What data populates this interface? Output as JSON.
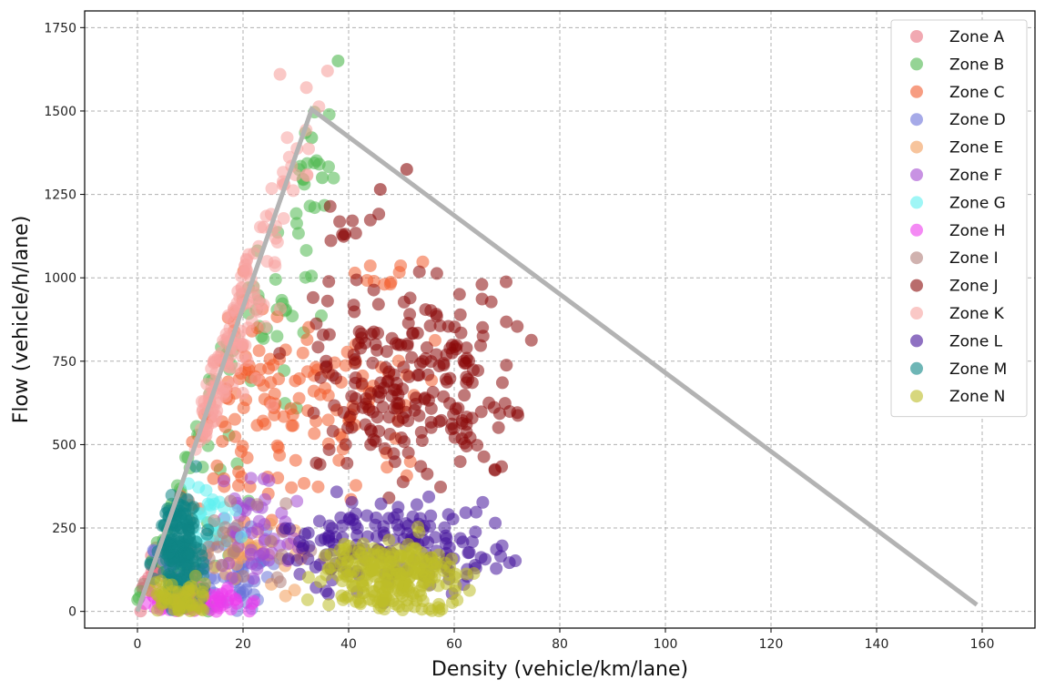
{
  "chart_data": {
    "type": "scatter",
    "title": "",
    "xlabel": "Density (vehicle/km/lane)",
    "ylabel": "Flow (vehicle/h/lane)",
    "xlim": [
      -10,
      170
    ],
    "ylim": [
      -50,
      1800
    ],
    "xticks": [
      0,
      20,
      40,
      60,
      80,
      100,
      120,
      140,
      160
    ],
    "yticks": [
      0,
      250,
      500,
      750,
      1000,
      1250,
      1500,
      1750
    ],
    "grid": true,
    "legend_position": "top-right",
    "point_count_note": "representative sample of each zone's cloud",
    "series": [
      {
        "name": "Zone A",
        "color": "#e8707f",
        "clusters": [
          [
            3,
            100,
            4,
            80,
            20
          ]
        ]
      },
      {
        "name": "Zone B",
        "color": "#4fb84f",
        "clusters": [
          [
            10,
            350,
            8,
            300,
            40
          ],
          [
            22,
            950,
            8,
            250,
            40
          ],
          [
            33,
            1300,
            4,
            150,
            20
          ]
        ],
        "points": [
          [
            38,
            1650
          ],
          [
            33,
            1420
          ],
          [
            35,
            1300
          ]
        ]
      },
      {
        "name": "Zone C",
        "color": "#f25c2e",
        "clusters": [
          [
            22,
            650,
            8,
            250,
            90
          ],
          [
            40,
            620,
            10,
            200,
            60
          ],
          [
            48,
            1000,
            5,
            60,
            10
          ]
        ]
      },
      {
        "name": "Zone D",
        "color": "#6a72d8",
        "clusters": [
          [
            16,
            120,
            8,
            90,
            70
          ]
        ]
      },
      {
        "name": "Zone E",
        "color": "#f29c5a",
        "clusters": [
          [
            20,
            180,
            10,
            80,
            40
          ]
        ]
      },
      {
        "name": "Zone F",
        "color": "#a34ad1",
        "clusters": [
          [
            22,
            220,
            6,
            120,
            50
          ]
        ]
      },
      {
        "name": "Zone G",
        "color": "#5ff0f0",
        "clusters": [
          [
            13,
            280,
            4,
            70,
            30
          ]
        ]
      },
      {
        "name": "Zone H",
        "color": "#ec3cec",
        "clusters": [
          [
            12,
            30,
            8,
            30,
            80
          ]
        ]
      },
      {
        "name": "Zone I",
        "color": "#b07f7a",
        "clusters": [
          [
            18,
            200,
            10,
            100,
            30
          ]
        ]
      },
      {
        "name": "Zone J",
        "color": "#8b0a0a",
        "clusters": [
          [
            52,
            700,
            14,
            220,
            230
          ],
          [
            40,
            1150,
            4,
            60,
            10
          ]
        ],
        "points": [
          [
            51,
            1325
          ],
          [
            46,
            1265
          ]
        ]
      },
      {
        "name": "Zone K",
        "color": "#f7a3a0",
        "clusters": [
          [
            18,
            1050,
            6,
            300,
            120
          ],
          [
            27,
            1380,
            4,
            90,
            25
          ]
        ],
        "points": [
          [
            27,
            1610
          ],
          [
            36,
            1620
          ],
          [
            32,
            1570
          ]
        ]
      },
      {
        "name": "Zone L",
        "color": "#44139a",
        "clusters": [
          [
            50,
            200,
            14,
            100,
            170
          ]
        ]
      },
      {
        "name": "Zone M",
        "color": "#0e8585",
        "clusters": [
          [
            8,
            180,
            3,
            140,
            160
          ]
        ]
      },
      {
        "name": "Zone N",
        "color": "#bdbd28",
        "clusters": [
          [
            48,
            110,
            10,
            80,
            240
          ],
          [
            8,
            40,
            4,
            40,
            60
          ]
        ]
      }
    ],
    "fundamental_diagram_line": {
      "color": "#b3b3b3",
      "points": [
        [
          0,
          0
        ],
        [
          33,
          1505
        ],
        [
          159,
          20
        ]
      ]
    }
  }
}
